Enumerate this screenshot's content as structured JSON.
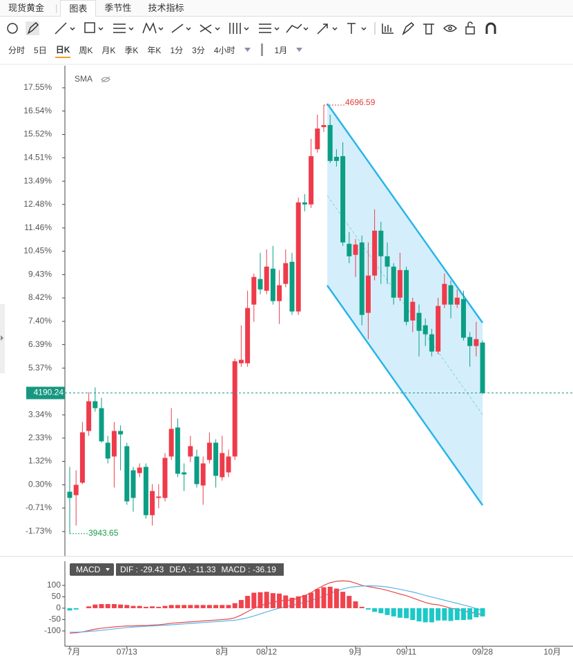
{
  "header": {
    "instrument": "现货黄金",
    "tabs": [
      "图表",
      "季节性",
      "技术指标"
    ],
    "active_tab": 0
  },
  "periods": {
    "items": [
      "分时",
      "5日",
      "日K",
      "周K",
      "月K",
      "季K",
      "年K",
      "1分",
      "3分",
      "4小时"
    ],
    "active": 2,
    "range": "1月"
  },
  "chart_data": [
    {
      "type": "candlestick",
      "indicator": "SMA",
      "up_color": "#ee3b4b",
      "down_color": "#0b9e84",
      "ylim": [
        -2.75,
        18.51
      ],
      "yticks": [
        {
          "value": 17.55,
          "label": "17.55%"
        },
        {
          "value": 16.54,
          "label": "16.54%"
        },
        {
          "value": 15.52,
          "label": "15.52%"
        },
        {
          "value": 14.51,
          "label": "14.51%"
        },
        {
          "value": 13.49,
          "label": "13.49%"
        },
        {
          "value": 12.48,
          "label": "12.48%"
        },
        {
          "value": 11.46,
          "label": "11.46%"
        },
        {
          "value": 10.45,
          "label": "10.45%"
        },
        {
          "value": 9.43,
          "label": "9.43%"
        },
        {
          "value": 8.42,
          "label": "8.42%"
        },
        {
          "value": 7.4,
          "label": "7.40%"
        },
        {
          "value": 6.39,
          "label": "6.39%"
        },
        {
          "value": 5.37,
          "label": "5.37%"
        },
        {
          "value": 3.34,
          "label": "3.34%"
        },
        {
          "value": 2.33,
          "label": "2.33%"
        },
        {
          "value": 1.32,
          "label": "1.32%"
        },
        {
          "value": 0.3,
          "label": "0.30%"
        },
        {
          "value": -0.71,
          "label": "-0.71%"
        },
        {
          "value": -1.73,
          "label": "-1.73%"
        }
      ],
      "high_label": "4696.59",
      "low_label": "3943.65",
      "last_label": "4190.24",
      "open": [
        0.0,
        -0.15,
        0.39,
        2.64,
        3.93,
        3.63,
        2.13,
        1.53,
        2.64,
        1.98,
        0.93,
        0.81,
        1.08,
        -1.02,
        -0.27,
        -0.27,
        1.53,
        2.79,
        0.84,
        1.53,
        1.53,
        0.27,
        1.38,
        2.13,
        0.63,
        0.84,
        1.53,
        5.58,
        5.58,
        8.13,
        9.24,
        8.73,
        9.69,
        8.28,
        9.03,
        9.99,
        7.83,
        12.57,
        12.48,
        14.88,
        15.84,
        15.93,
        14.55,
        14.58,
        10.77,
        10.29,
        10.83,
        7.77,
        9.39,
        11.34,
        10.23,
        9.78,
        8.43,
        9.63,
        7.44,
        7.77,
        7.23,
        6.84,
        6.09,
        8.13,
        8.97,
        8.13,
        8.37,
        6.72,
        6.33,
        6.48
      ],
      "close": [
        -0.27,
        0.3,
        2.58,
        3.93,
        3.63,
        2.19,
        1.44,
        2.64,
        2.49,
        -0.42,
        -0.27,
        1.05,
        -1.02,
        0.03,
        -0.21,
        1.47,
        2.73,
        0.78,
        0.75,
        1.98,
        0.33,
        1.23,
        2.13,
        0.69,
        1.68,
        1.53,
        5.67,
        5.73,
        7.98,
        9.33,
        8.79,
        9.78,
        8.28,
        8.97,
        9.93,
        7.83,
        12.57,
        12.48,
        14.58,
        15.78,
        15.93,
        14.37,
        14.37,
        10.83,
        10.23,
        10.74,
        7.68,
        9.39,
        11.34,
        10.23,
        9.78,
        8.43,
        9.63,
        7.38,
        8.25,
        6.99,
        6.84,
        6.09,
        8.07,
        9.03,
        8.13,
        8.43,
        6.69,
        6.33,
        6.63,
        4.29
      ],
      "high": [
        1.08,
        0.93,
        3.03,
        4.32,
        4.53,
        4.08,
        2.43,
        3.03,
        2.88,
        2.13,
        1.08,
        1.23,
        1.23,
        0.33,
        0.33,
        1.68,
        3.63,
        3.18,
        1.23,
        2.43,
        1.83,
        1.53,
        2.58,
        2.28,
        2.43,
        1.83,
        5.79,
        7.23,
        8.73,
        9.48,
        10.38,
        10.53,
        10.68,
        9.63,
        10.53,
        10.38,
        12.78,
        12.93,
        15.33,
        16.38,
        16.8,
        16.38,
        14.88,
        15.18,
        11.28,
        10.98,
        11.13,
        10.83,
        12.27,
        11.73,
        10.83,
        9.93,
        10.38,
        9.78,
        8.43,
        8.13,
        7.53,
        7.08,
        8.43,
        9.48,
        9.18,
        8.79,
        8.73,
        6.93,
        7.38,
        6.57
      ],
      "low": [
        -1.82,
        -1.47,
        0.33,
        2.43,
        3.48,
        2.13,
        1.23,
        0.18,
        0.93,
        -0.57,
        -0.87,
        0.63,
        -1.17,
        -1.47,
        -0.72,
        -0.42,
        1.38,
        0.63,
        0.03,
        1.29,
        0.18,
        -0.57,
        1.23,
        0.18,
        0.48,
        0.63,
        1.38,
        5.43,
        5.43,
        7.38,
        8.58,
        8.58,
        8.13,
        7.29,
        8.88,
        7.68,
        7.68,
        12.18,
        12.33,
        14.73,
        15.63,
        14.28,
        14.13,
        10.68,
        9.93,
        9.33,
        7.23,
        6.63,
        9.18,
        9.03,
        9.03,
        8.13,
        8.28,
        7.23,
        6.93,
        5.88,
        6.33,
        5.88,
        5.97,
        7.98,
        7.53,
        7.98,
        6.57,
        5.43,
        5.88,
        4.23
      ]
    },
    {
      "type": "macd",
      "selector": "MACD",
      "readout": [
        "DIF : -29.43",
        "DEA : -11.33",
        "MACD : -36.19"
      ],
      "ylim": [
        -167,
        206
      ],
      "yticks": [
        100,
        50,
        0,
        -50,
        -100
      ],
      "categories": [
        "7月",
        null,
        null,
        null,
        null,
        null,
        null,
        null,
        null,
        "07/13",
        null,
        null,
        null,
        null,
        null,
        null,
        null,
        null,
        null,
        null,
        null,
        null,
        null,
        null,
        "8月",
        null,
        null,
        null,
        null,
        null,
        null,
        "08/12",
        null,
        null,
        null,
        null,
        null,
        null,
        null,
        null,
        null,
        null,
        null,
        null,
        null,
        "9月",
        null,
        null,
        null,
        null,
        null,
        null,
        null,
        "09/11",
        null,
        null,
        null,
        null,
        null,
        null,
        null,
        null,
        null,
        null,
        null,
        "09/28"
      ],
      "future_label": "10月",
      "series": [
        {
          "name": "DIF",
          "color": "#e8474a",
          "values": [
            -110,
            -108,
            -104,
            -98,
            -92,
            -88,
            -85,
            -82,
            -80,
            -78,
            -78,
            -76,
            -76,
            -74,
            -73,
            -70,
            -66,
            -64,
            -62,
            -60,
            -58,
            -56,
            -54,
            -52,
            -50,
            -48,
            -42,
            -30,
            -15,
            0,
            10,
            20,
            25,
            32,
            35,
            35,
            45,
            55,
            68,
            85,
            100,
            112,
            118,
            120,
            118,
            110,
            100,
            95,
            90,
            85,
            78,
            70,
            62,
            55,
            45,
            35,
            25,
            18,
            15,
            8,
            0,
            -5,
            -12,
            -18,
            -22,
            -29.43
          ]
        },
        {
          "name": "DEA",
          "color": "#5ab4e6",
          "values": [
            -105,
            -105,
            -104,
            -102,
            -100,
            -97,
            -94,
            -91,
            -88,
            -85,
            -83,
            -81,
            -79,
            -78,
            -76,
            -75,
            -73,
            -71,
            -69,
            -67,
            -65,
            -63,
            -61,
            -59,
            -57,
            -55,
            -53,
            -48,
            -42,
            -34,
            -25,
            -16,
            -8,
            0,
            7,
            12,
            19,
            26,
            34,
            43,
            54,
            65,
            75,
            84,
            91,
            95,
            97,
            98,
            98,
            96,
            93,
            88,
            83,
            77,
            71,
            64,
            56,
            49,
            42,
            35,
            28,
            21,
            14,
            7,
            -2,
            -11.33
          ]
        },
        {
          "name": "MACD",
          "up_color": "#f0434d",
          "down_color": "#1cc8c8",
          "values": [
            -10,
            -6,
            0,
            8,
            16,
            18,
            18,
            18,
            16,
            14,
            10,
            10,
            6,
            8,
            6,
            10,
            14,
            14,
            14,
            14,
            14,
            14,
            14,
            14,
            14,
            14,
            22,
            36,
            54,
            68,
            70,
            72,
            66,
            64,
            56,
            46,
            52,
            58,
            68,
            84,
            92,
            94,
            86,
            72,
            54,
            30,
            6,
            -6,
            -16,
            -22,
            -30,
            -36,
            -42,
            -44,
            -52,
            -58,
            -62,
            -62,
            -54,
            -54,
            -56,
            -52,
            -52,
            -50,
            -40,
            -36.19
          ]
        }
      ]
    }
  ]
}
